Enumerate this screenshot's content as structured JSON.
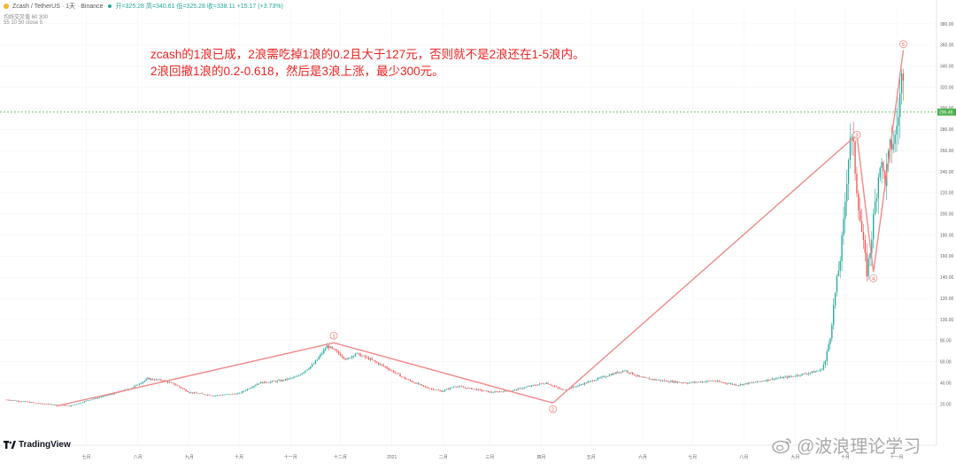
{
  "header": {
    "symbol_line": "Zcash / TetherUS · 1天 · Binance",
    "ohlc": "开=325.28 高=340.61 低=325.28 收=338.11 +15.17 (+3.73%)",
    "indicator1": "均线交叉值 60 300",
    "indicator2": "55 10 50 close 5"
  },
  "annotation": {
    "line1": "zcash的1浪已成，2浪需吃掉1浪的0.2且大于127元，否则就不是2浪还在1-5浪内。",
    "line2": "2浪回撤1浪的0.2-0.618，然后是3浪上涨，最少300元。"
  },
  "branding": {
    "logo_text": "TradingView",
    "watermark_text": "@波浪理论学习"
  },
  "colors": {
    "up": "#26a69a",
    "down": "#ef5350",
    "wave": "#f08a8a",
    "annotation": "#ee2222",
    "price_line": "#4caf50"
  },
  "chart_data": {
    "type": "candlestick",
    "symbol": "ZECUSDT",
    "ylim": [
      0,
      380
    ],
    "yticks": [
      20,
      40,
      60,
      80,
      100,
      120,
      140,
      160,
      180,
      200,
      220,
      240,
      260,
      280,
      300,
      320,
      340,
      360,
      380
    ],
    "ytick_labels": [
      "20.00",
      "40.00",
      "60.00",
      "80.00",
      "100.00",
      "120.00",
      "140.00",
      "160.00",
      "180.00",
      "200.00",
      "220.00",
      "240.00",
      "260.00",
      "280.00",
      "300.00",
      "320.00",
      "340.00",
      "360.00",
      "380.00"
    ],
    "current_price": 296.49,
    "current_price_label": "296.49",
    "xticks": [
      {
        "label": "七月",
        "day": 48
      },
      {
        "label": "八月",
        "day": 79
      },
      {
        "label": "九月",
        "day": 110
      },
      {
        "label": "十月",
        "day": 140
      },
      {
        "label": "十一月",
        "day": 171
      },
      {
        "label": "十二月",
        "day": 201
      },
      {
        "label": "2021",
        "day": 232
      },
      {
        "label": "二月",
        "day": 263
      },
      {
        "label": "三月",
        "day": 291
      },
      {
        "label": "四月",
        "day": 322
      },
      {
        "label": "五月",
        "day": 352
      },
      {
        "label": "六月",
        "day": 383
      },
      {
        "label": "七月",
        "day": 413
      },
      {
        "label": "八月",
        "day": 444
      },
      {
        "label": "九月",
        "day": 475
      },
      {
        "label": "十月",
        "day": 505
      },
      {
        "label": "十一月",
        "day": 536
      }
    ],
    "price_path": [
      [
        0,
        24
      ],
      [
        12,
        22
      ],
      [
        22,
        20
      ],
      [
        32,
        19
      ],
      [
        38,
        18
      ],
      [
        50,
        24
      ],
      [
        65,
        30
      ],
      [
        75,
        35
      ],
      [
        85,
        44
      ],
      [
        95,
        42
      ],
      [
        102,
        38
      ],
      [
        110,
        31
      ],
      [
        125,
        28
      ],
      [
        140,
        30
      ],
      [
        152,
        40
      ],
      [
        165,
        42
      ],
      [
        175,
        46
      ],
      [
        185,
        58
      ],
      [
        193,
        75
      ],
      [
        198,
        70
      ],
      [
        205,
        62
      ],
      [
        210,
        68
      ],
      [
        218,
        63
      ],
      [
        228,
        55
      ],
      [
        240,
        44
      ],
      [
        252,
        36
      ],
      [
        262,
        32
      ],
      [
        270,
        37
      ],
      [
        282,
        34
      ],
      [
        292,
        31
      ],
      [
        305,
        33
      ],
      [
        318,
        38
      ],
      [
        325,
        40
      ],
      [
        335,
        33
      ],
      [
        345,
        38
      ],
      [
        360,
        46
      ],
      [
        372,
        52
      ],
      [
        382,
        45
      ],
      [
        395,
        42
      ],
      [
        410,
        40
      ],
      [
        425,
        42
      ],
      [
        440,
        38
      ],
      [
        452,
        41
      ],
      [
        462,
        44
      ],
      [
        472,
        46
      ],
      [
        482,
        49
      ],
      [
        490,
        52
      ],
      [
        493,
        60
      ],
      [
        496,
        85
      ],
      [
        499,
        125
      ],
      [
        502,
        158
      ],
      [
        504,
        190
      ],
      [
        506,
        235
      ],
      [
        508,
        275
      ],
      [
        510,
        260
      ],
      [
        512,
        225
      ],
      [
        514,
        195
      ],
      [
        516,
        170
      ],
      [
        518,
        145
      ],
      [
        520,
        165
      ],
      [
        523,
        210
      ],
      [
        526,
        250
      ],
      [
        529,
        232
      ],
      [
        532,
        262
      ],
      [
        535,
        272
      ],
      [
        537,
        295
      ],
      [
        539,
        328
      ],
      [
        540,
        338
      ]
    ],
    "waves": {
      "points": [
        {
          "day": 30,
          "value": 18
        },
        {
          "day": 197,
          "value": 78,
          "label": "1"
        },
        {
          "day": 329,
          "value": 21,
          "label": "2"
        },
        {
          "day": 512,
          "value": 275,
          "label": "3"
        },
        {
          "day": 522,
          "value": 145,
          "label": "4"
        },
        {
          "day": 540,
          "value": 355,
          "label": "5"
        }
      ]
    }
  }
}
